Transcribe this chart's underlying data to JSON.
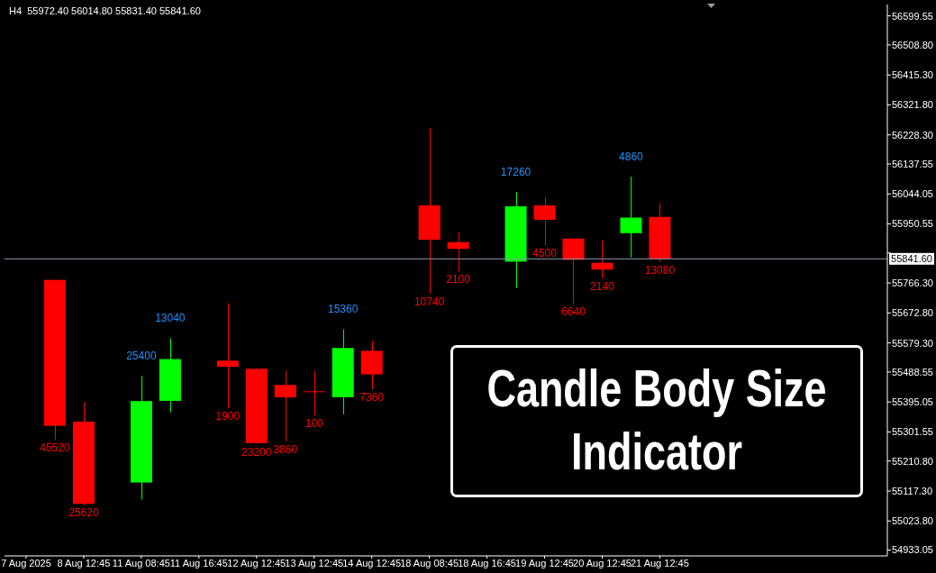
{
  "chart_data": {
    "type": "candlestick",
    "title": "H4  55972.40 56014.80 55831.40 55841.60",
    "categories": [
      "7 Aug 2025",
      null,
      "8 Aug 12:45",
      null,
      "11 Aug 08:45",
      null,
      "11 Aug 16:45",
      null,
      "12 Aug 12:45",
      null,
      "13 Aug 12:45",
      null,
      "14 Aug 12:45",
      null,
      "18 Aug 08:45",
      null,
      "18 Aug 16:45",
      null,
      "19 Aug 12:45",
      null,
      "20 Aug 12:45",
      null,
      "21 Aug 12:45",
      null,
      null,
      null,
      null,
      null,
      null,
      null
    ],
    "ohlc": [
      null,
      [
        55776,
        55776,
        55277.4,
        55320.8
      ],
      [
        55333.5,
        55395.1,
        55074,
        55077.3
      ],
      null,
      [
        55143.9,
        55476.3,
        55090.7,
        55397.9
      ],
      [
        55398.5,
        55594,
        55362.4,
        55528.9
      ],
      null,
      [
        55524,
        55703.2,
        55375.5,
        55505
      ],
      [
        55498.7,
        55500.5,
        55264,
        55266.7
      ],
      [
        55448.3,
        55493.2,
        55272.7,
        55409.7
      ],
      [
        55428.4,
        55493.2,
        55353.1,
        55427.4
      ],
      [
        55410,
        55622,
        55356.8,
        55563.6
      ],
      [
        55554.8,
        55585.6,
        55435.2,
        55481.2
      ],
      null,
      [
        56008.5,
        56249.4,
        55732.1,
        55901.1
      ],
      [
        55893.7,
        55924.5,
        55802.1,
        55872.7
      ],
      null,
      [
        55832.9,
        56050.5,
        55750.8,
        56005.5
      ],
      [
        56008.5,
        56033.7,
        55883.3,
        55963.5
      ],
      [
        55904.9,
        55904.9,
        55702.4,
        55838.5
      ],
      [
        55829.3,
        55899.3,
        55780.8,
        55807.9
      ],
      [
        55921.7,
        56098.2,
        55846.1,
        55970.3
      ],
      [
        55972.4,
        56014.8,
        55831.4,
        55841.6
      ],
      null,
      null,
      null,
      null,
      null,
      null,
      null
    ],
    "colors": [
      null,
      "#ff0000",
      "#ff0000",
      null,
      "#00ff00",
      "#00ff00",
      null,
      "#ff0000",
      "#ff0000",
      "#ff0000",
      "#ff0000",
      "#00ff00",
      "#ff0000",
      null,
      "#ff0000",
      "#ff0000",
      null,
      "#00ff00",
      "#ff0000",
      "#ff0000",
      "#ff0000",
      "#00ff00",
      "#ff0000",
      null,
      null,
      null,
      null,
      null,
      null,
      null
    ],
    "value_labels": [
      null,
      "45520",
      "25620",
      null,
      "25400",
      "13040",
      null,
      "1900",
      "23200",
      "3860",
      "100",
      "15360",
      "7360",
      null,
      "10740",
      "2100",
      null,
      "17260",
      "4500",
      "6640",
      "2140",
      "4860",
      "13080",
      null,
      null,
      null,
      null,
      null,
      null,
      null
    ],
    "ylim": [
      54915,
      56635
    ],
    "yticks": [
      56599.55,
      {
        "value": 56508.8,
        "label": "56508.80"
      },
      {
        "value": 56415.3,
        "label": "56415.30"
      },
      {
        "value": 56321.8,
        "label": "56321.80"
      },
      {
        "value": 56228.3,
        "label": "56228.30"
      },
      56137.55,
      56044.05,
      55950.55,
      {
        "value": 55859.8,
        "label": null
      },
      {
        "value": 55766.3,
        "label": "55766.30"
      },
      {
        "value": 55672.8,
        "label": "55672.80"
      },
      {
        "value": 55579.3,
        "label": "55579.30"
      },
      55488.55,
      55395.05,
      55301.55,
      {
        "value": 55210.8,
        "label": "55210.80"
      },
      {
        "value": 55117.3,
        "label": "55117.30"
      },
      {
        "value": 55023.8,
        "label": "55023.80"
      },
      54933.05
    ],
    "ref_lines": [
      {
        "axis": "y",
        "value": 55841.6,
        "label": "55841.60",
        "color": "#8a9bb0"
      }
    ],
    "annotations": [
      "Candle Body Size Indicator"
    ]
  }
}
